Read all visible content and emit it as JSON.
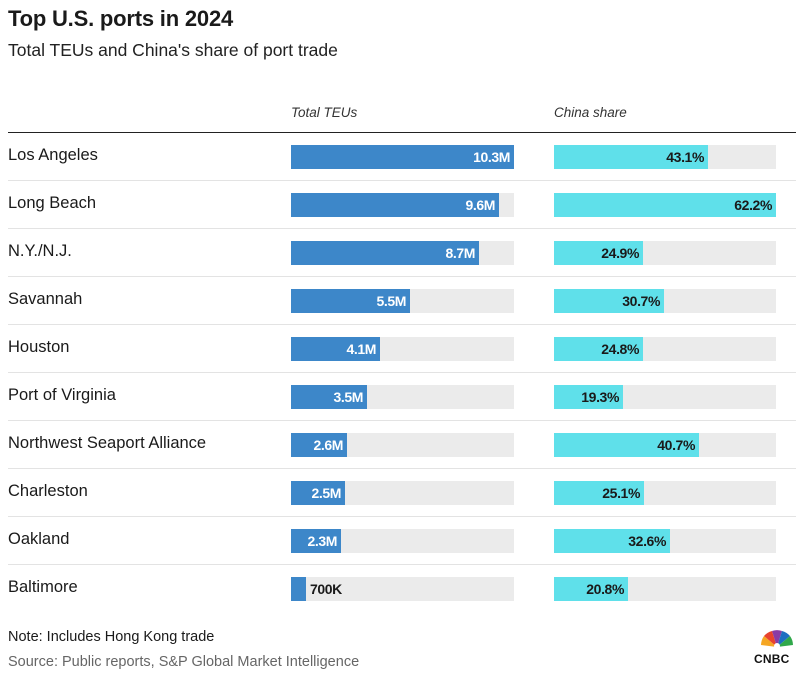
{
  "title": "Top U.S. ports in 2024",
  "subtitle": "Total TEUs and China's share of port trade",
  "columns": {
    "teu": "Total TEUs",
    "china": "China share"
  },
  "note": "Note: Includes Hong Kong trade",
  "source": "Source: Public reports, S&P Global Market Intelligence",
  "logo": {
    "text": "CNBC",
    "icon": "nbc-peacock-icon"
  },
  "colors": {
    "teu_bar": "#3d87c9",
    "china_bar": "#5fe0ea",
    "track": "#ebebeb"
  },
  "chart_data": {
    "type": "bar",
    "title": "Top U.S. ports in 2024",
    "subtitle": "Total TEUs and China's share of port trade",
    "categories": [
      "Los Angeles",
      "Long Beach",
      "N.Y./N.J.",
      "Savannah",
      "Houston",
      "Port of Virginia",
      "Northwest Seaport Alliance",
      "Charleston",
      "Oakland",
      "Baltimore"
    ],
    "series": [
      {
        "name": "Total TEUs",
        "values": [
          10.3,
          9.6,
          8.7,
          5.5,
          4.1,
          3.5,
          2.6,
          2.5,
          2.3,
          0.7
        ],
        "labels": [
          "10.3M",
          "9.6M",
          "8.7M",
          "5.5M",
          "4.1M",
          "3.5M",
          "2.6M",
          "2.5M",
          "2.3M",
          "700K"
        ],
        "max": 10.3
      },
      {
        "name": "China share",
        "values": [
          43.1,
          62.2,
          24.9,
          30.7,
          24.8,
          19.3,
          40.7,
          25.1,
          32.6,
          20.8
        ],
        "labels": [
          "43.1%",
          "62.2%",
          "24.9%",
          "30.7%",
          "24.8%",
          "19.3%",
          "40.7%",
          "25.1%",
          "32.6%",
          "20.8%"
        ],
        "max": 62.2
      }
    ],
    "legend": "none",
    "grid": false
  }
}
